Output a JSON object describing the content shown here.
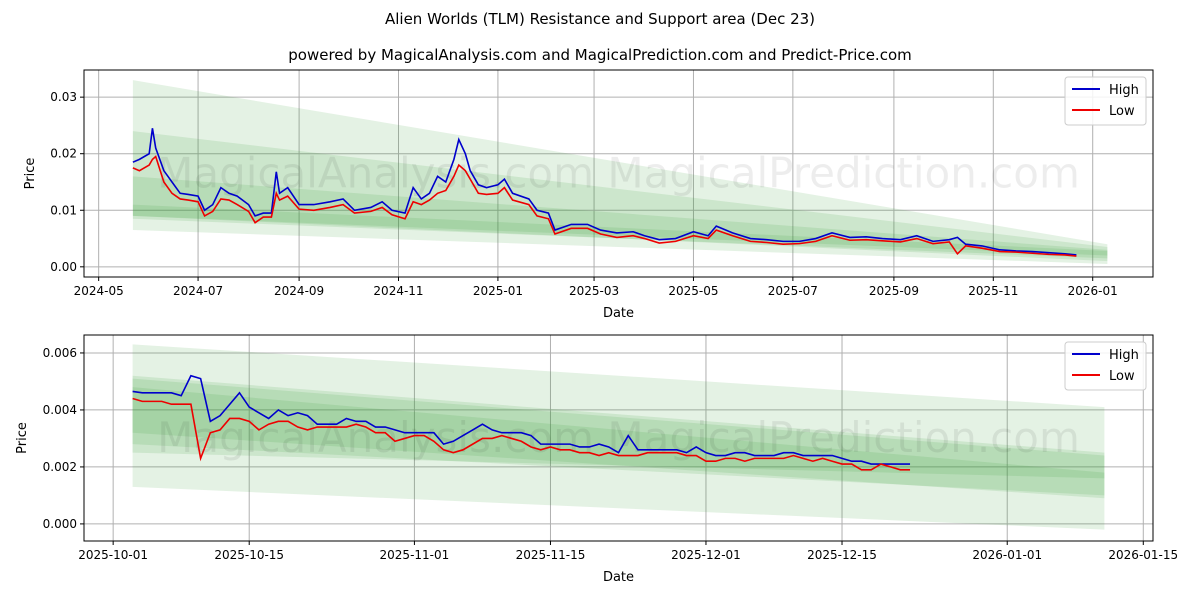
{
  "title": "Alien Worlds (TLM) Resistance and Support area (Dec 23)",
  "subtitle": "powered by MagicalAnalysis.com and MagicalPrediction.com and Predict-Price.com",
  "watermark": "MagicalAnalysis.com    MagicalPrediction.com",
  "colors": {
    "high": "#0000cc",
    "low": "#ee0000",
    "band": "#2e9e2e"
  },
  "chart_data": [
    {
      "type": "line",
      "title": "",
      "xlabel": "Date",
      "ylabel": "Price",
      "xlim": [
        "2024-04-22",
        "2026-02-07"
      ],
      "ylim": [
        -0.0018,
        0.0348
      ],
      "xticks": [
        "2024-05",
        "2024-07",
        "2024-09",
        "2024-11",
        "2025-01",
        "2025-03",
        "2025-05",
        "2025-07",
        "2025-09",
        "2025-11",
        "2026-01"
      ],
      "xtick_dates": [
        "2024-05-01",
        "2024-07-01",
        "2024-09-01",
        "2024-11-01",
        "2025-01-01",
        "2025-03-01",
        "2025-05-01",
        "2025-07-01",
        "2025-09-01",
        "2025-11-01",
        "2026-01-01"
      ],
      "yticks": [
        0,
        0.01,
        0.02,
        0.03
      ],
      "ytick_labels": [
        "0.00",
        "0.01",
        "0.02",
        "0.03"
      ],
      "legend": {
        "position": "top-right",
        "entries": [
          "High",
          "Low"
        ]
      },
      "bands": [
        {
          "start": "2024-05-22",
          "end": "2026-01-10",
          "start_range": [
            0.0065,
            0.033
          ],
          "end_range": [
            0.0005,
            0.004
          ]
        },
        {
          "start": "2024-05-22",
          "end": "2026-01-10",
          "start_range": [
            0.009,
            0.024
          ],
          "end_range": [
            0.001,
            0.0035
          ]
        },
        {
          "start": "2024-05-22",
          "end": "2026-01-10",
          "start_range": [
            0.0085,
            0.016
          ],
          "end_range": [
            0.0015,
            0.003
          ]
        },
        {
          "start": "2024-05-22",
          "end": "2026-01-10",
          "start_range": [
            0.009,
            0.011
          ],
          "end_range": [
            0.002,
            0.0028
          ]
        }
      ],
      "x": [
        "2024-05-22",
        "2024-05-26",
        "2024-06-01",
        "2024-06-03",
        "2024-06-05",
        "2024-06-10",
        "2024-06-15",
        "2024-06-20",
        "2024-06-25",
        "2024-07-01",
        "2024-07-05",
        "2024-07-10",
        "2024-07-15",
        "2024-07-20",
        "2024-07-25",
        "2024-08-01",
        "2024-08-05",
        "2024-08-10",
        "2024-08-15",
        "2024-08-18",
        "2024-08-20",
        "2024-08-25",
        "2024-09-01",
        "2024-09-10",
        "2024-09-20",
        "2024-09-28",
        "2024-10-05",
        "2024-10-15",
        "2024-10-22",
        "2024-10-28",
        "2024-11-05",
        "2024-11-10",
        "2024-11-15",
        "2024-11-20",
        "2024-11-25",
        "2024-11-30",
        "2024-12-05",
        "2024-12-08",
        "2024-12-12",
        "2024-12-15",
        "2024-12-20",
        "2024-12-25",
        "2025-01-01",
        "2025-01-05",
        "2025-01-10",
        "2025-01-20",
        "2025-01-25",
        "2025-02-01",
        "2025-02-05",
        "2025-02-15",
        "2025-02-25",
        "2025-03-05",
        "2025-03-15",
        "2025-03-25",
        "2025-04-01",
        "2025-04-10",
        "2025-04-20",
        "2025-05-01",
        "2025-05-10",
        "2025-05-15",
        "2025-05-25",
        "2025-06-05",
        "2025-06-15",
        "2025-06-25",
        "2025-07-05",
        "2025-07-15",
        "2025-07-25",
        "2025-08-05",
        "2025-08-15",
        "2025-08-25",
        "2025-09-05",
        "2025-09-15",
        "2025-09-25",
        "2025-10-05",
        "2025-10-10",
        "2025-10-15",
        "2025-10-25",
        "2025-11-05",
        "2025-11-15",
        "2025-11-25",
        "2025-12-05",
        "2025-12-15",
        "2025-12-22"
      ],
      "series": [
        {
          "name": "High",
          "values": [
            0.0185,
            0.019,
            0.02,
            0.0245,
            0.021,
            0.017,
            0.015,
            0.013,
            0.0128,
            0.0125,
            0.01,
            0.011,
            0.014,
            0.013,
            0.0125,
            0.011,
            0.009,
            0.0095,
            0.0095,
            0.0168,
            0.013,
            0.014,
            0.011,
            0.011,
            0.0115,
            0.012,
            0.01,
            0.0105,
            0.0115,
            0.01,
            0.0095,
            0.014,
            0.012,
            0.013,
            0.016,
            0.015,
            0.019,
            0.0225,
            0.02,
            0.017,
            0.0145,
            0.014,
            0.0145,
            0.0155,
            0.013,
            0.012,
            0.01,
            0.0095,
            0.0065,
            0.0075,
            0.0075,
            0.0065,
            0.006,
            0.0062,
            0.0055,
            0.0048,
            0.005,
            0.0062,
            0.0055,
            0.0072,
            0.006,
            0.005,
            0.0048,
            0.0045,
            0.0045,
            0.005,
            0.006,
            0.0052,
            0.0053,
            0.005,
            0.0048,
            0.0055,
            0.0045,
            0.0048,
            0.0052,
            0.004,
            0.0037,
            0.003,
            0.0028,
            0.0027,
            0.0025,
            0.0023,
            0.0021
          ]
        },
        {
          "name": "Low",
          "values": [
            0.0175,
            0.017,
            0.018,
            0.019,
            0.0195,
            0.015,
            0.013,
            0.012,
            0.0118,
            0.0115,
            0.009,
            0.0098,
            0.012,
            0.0118,
            0.011,
            0.0098,
            0.0078,
            0.0088,
            0.0088,
            0.013,
            0.0118,
            0.0125,
            0.0102,
            0.01,
            0.0105,
            0.011,
            0.0095,
            0.0098,
            0.0105,
            0.0092,
            0.0085,
            0.0115,
            0.011,
            0.0118,
            0.013,
            0.0135,
            0.016,
            0.018,
            0.017,
            0.0155,
            0.013,
            0.0128,
            0.013,
            0.014,
            0.0118,
            0.011,
            0.009,
            0.0085,
            0.0058,
            0.0068,
            0.0068,
            0.0058,
            0.0052,
            0.0055,
            0.005,
            0.0042,
            0.0045,
            0.0055,
            0.005,
            0.0065,
            0.0055,
            0.0045,
            0.0043,
            0.004,
            0.0041,
            0.0045,
            0.0055,
            0.0047,
            0.0048,
            0.0046,
            0.0044,
            0.005,
            0.0041,
            0.0044,
            0.0023,
            0.0037,
            0.0033,
            0.0027,
            0.0026,
            0.0024,
            0.0022,
            0.0021,
            0.0019
          ]
        }
      ]
    },
    {
      "type": "line",
      "title": "",
      "xlabel": "Date",
      "ylabel": "Price",
      "xlim": [
        "2025-09-28",
        "2026-01-16"
      ],
      "ylim": [
        -0.0006,
        0.00663
      ],
      "xticks": [
        "2025-10-01",
        "2025-10-15",
        "2025-11-01",
        "2025-11-15",
        "2025-12-01",
        "2025-12-15",
        "2026-01-01",
        "2026-01-15"
      ],
      "xtick_dates": [
        "2025-10-01",
        "2025-10-15",
        "2025-11-01",
        "2025-11-15",
        "2025-12-01",
        "2025-12-15",
        "2026-01-01",
        "2026-01-15"
      ],
      "yticks": [
        0,
        0.002,
        0.004,
        0.006
      ],
      "ytick_labels": [
        "0.000",
        "0.002",
        "0.004",
        "0.006"
      ],
      "legend": {
        "position": "top-right",
        "entries": [
          "High",
          "Low"
        ]
      },
      "bands": [
        {
          "start": "2025-10-03",
          "end": "2026-01-11",
          "start_range": [
            0.0013,
            0.0063
          ],
          "end_range": [
            -0.0002,
            0.0041
          ]
        },
        {
          "start": "2025-10-03",
          "end": "2026-01-11",
          "start_range": [
            0.0025,
            0.0052
          ],
          "end_range": [
            0.0016,
            0.0025
          ]
        },
        {
          "start": "2025-10-03",
          "end": "2026-01-11",
          "start_range": [
            0.0032,
            0.0051
          ],
          "end_range": [
            0.0009,
            0.0024
          ]
        },
        {
          "start": "2025-10-03",
          "end": "2026-01-11",
          "start_range": [
            0.0028,
            0.0048
          ],
          "end_range": [
            0.001,
            0.0018
          ]
        }
      ],
      "x_start": "2025-10-03",
      "x_step_days": 1,
      "series": [
        {
          "name": "High",
          "values": [
            0.00465,
            0.0046,
            0.0046,
            0.0046,
            0.0046,
            0.0045,
            0.0052,
            0.0051,
            0.0036,
            0.0038,
            0.0042,
            0.0046,
            0.0041,
            0.0039,
            0.0037,
            0.004,
            0.0038,
            0.0039,
            0.0038,
            0.0035,
            0.0035,
            0.0035,
            0.0037,
            0.0036,
            0.0036,
            0.0034,
            0.0034,
            0.0033,
            0.0032,
            0.0032,
            0.0032,
            0.0032,
            0.0028,
            0.0029,
            0.0031,
            0.0033,
            0.0035,
            0.0033,
            0.0032,
            0.0032,
            0.0032,
            0.0031,
            0.0028,
            0.0028,
            0.0028,
            0.0028,
            0.0027,
            0.0027,
            0.0028,
            0.0027,
            0.0025,
            0.0031,
            0.0026,
            0.0026,
            0.0026,
            0.0026,
            0.0026,
            0.0025,
            0.0027,
            0.0025,
            0.0024,
            0.0024,
            0.0025,
            0.0025,
            0.0024,
            0.0024,
            0.0024,
            0.0025,
            0.0025,
            0.0024,
            0.0024,
            0.0024,
            0.0024,
            0.0023,
            0.0022,
            0.0022,
            0.0021,
            0.0021,
            0.0021,
            0.0021,
            0.0021
          ]
        },
        {
          "name": "Low",
          "values": [
            0.0044,
            0.0043,
            0.0043,
            0.0043,
            0.0042,
            0.0042,
            0.0042,
            0.0023,
            0.0032,
            0.0033,
            0.0037,
            0.0037,
            0.0036,
            0.0033,
            0.0035,
            0.0036,
            0.0036,
            0.0034,
            0.0033,
            0.0034,
            0.0034,
            0.0034,
            0.0034,
            0.0035,
            0.0034,
            0.0032,
            0.0032,
            0.0029,
            0.003,
            0.0031,
            0.0031,
            0.0029,
            0.0026,
            0.0025,
            0.0026,
            0.0028,
            0.003,
            0.003,
            0.0031,
            0.003,
            0.0029,
            0.0027,
            0.0026,
            0.0027,
            0.0026,
            0.0026,
            0.0025,
            0.0025,
            0.0024,
            0.0025,
            0.0024,
            0.0024,
            0.0024,
            0.0025,
            0.0025,
            0.0025,
            0.0025,
            0.0024,
            0.0024,
            0.0022,
            0.0022,
            0.0023,
            0.0023,
            0.0022,
            0.0023,
            0.0023,
            0.0023,
            0.0023,
            0.0024,
            0.0023,
            0.0022,
            0.0023,
            0.0022,
            0.0021,
            0.0021,
            0.0019,
            0.0019,
            0.0021,
            0.002,
            0.0019,
            0.0019
          ]
        }
      ]
    }
  ]
}
